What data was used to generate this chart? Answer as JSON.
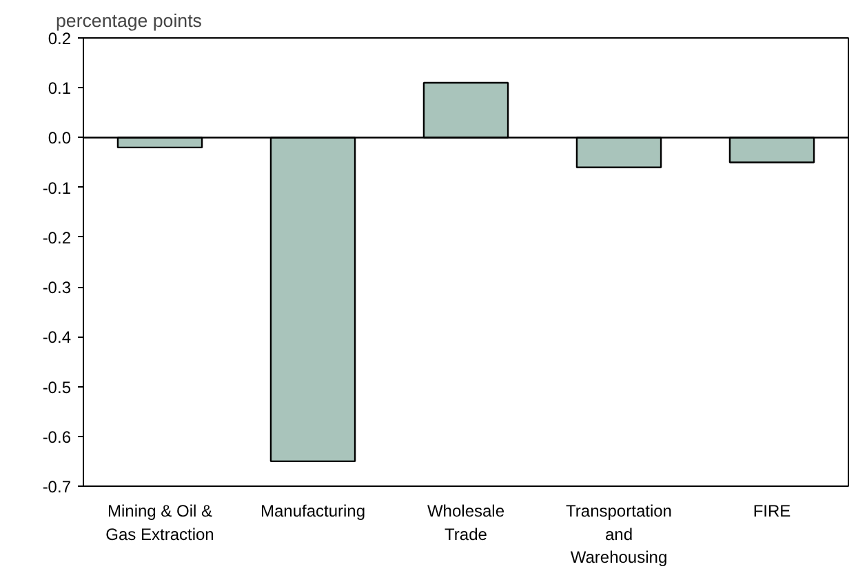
{
  "chart_data": {
    "type": "bar",
    "ylabel": "percentage points",
    "categories": [
      "Mining & Oil &\nGas Extraction",
      "Manufacturing",
      "Wholesale\nTrade",
      "Transportation\nand\nWarehousing",
      "FIRE"
    ],
    "values": [
      -0.02,
      -0.65,
      0.11,
      -0.06,
      -0.05
    ],
    "color": "#a9c4bb",
    "ylim": [
      -0.7,
      0.2
    ],
    "yticks": [
      {
        "value": -0.7,
        "label": "-0.7"
      },
      {
        "value": -0.6,
        "label": "-0.6"
      },
      {
        "value": -0.5,
        "label": "-0.5"
      },
      {
        "value": -0.4,
        "label": "-0.4"
      },
      {
        "value": -0.3,
        "label": "-0.3"
      },
      {
        "value": -0.2,
        "label": "-0.2"
      },
      {
        "value": -0.1,
        "label": "-0.1"
      },
      {
        "value": 0,
        "label": "0.0"
      },
      {
        "value": 0.1,
        "label": "0.1"
      },
      {
        "value": 0.2,
        "label": "0.2"
      }
    ]
  }
}
